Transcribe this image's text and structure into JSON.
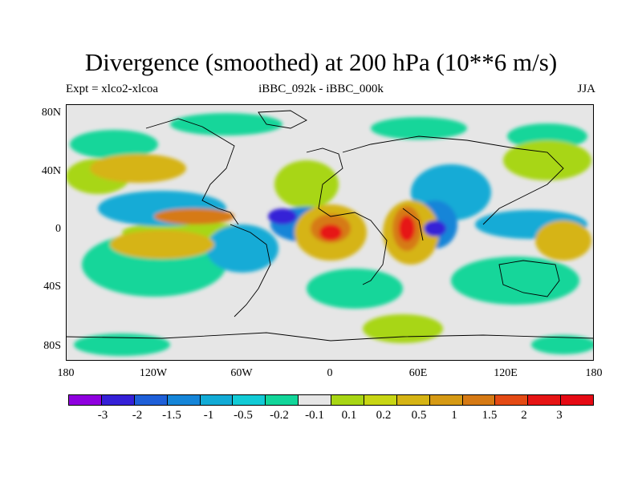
{
  "title": "Divergence (smoothed) at 200 hPa (10**6 m/s)",
  "subtitle_left": "Expt = xlco2-xlcoa",
  "subtitle_center": "iBBC_092k - iBBC_000k",
  "subtitle_right": "JJA",
  "lat_labels": [
    "80N",
    "40N",
    "0",
    "40S",
    "80S"
  ],
  "lon_labels": [
    "180",
    "120W",
    "60W",
    "0",
    "60E",
    "120E",
    "180"
  ],
  "colorbar": {
    "colors": [
      "#8f00df",
      "#3520d7",
      "#1e5fd8",
      "#1585d8",
      "#12abd6",
      "#12cbd6",
      "#12d69a",
      "#e6e6e6",
      "#a8d614",
      "#c8d614",
      "#d6b414",
      "#d69a14",
      "#d67a14",
      "#e44a14",
      "#e61414",
      "#e60a14"
    ],
    "tick_labels": [
      "-3",
      "-2",
      "-1.5",
      "-1",
      "-0.5",
      "-0.2",
      "-0.1",
      "0.1",
      "0.2",
      "0.5",
      "1",
      "1.5",
      "2",
      "3"
    ]
  },
  "field_colors": {
    "background": "#e6e6e6",
    "neg_strong": "#3520d7",
    "neg_mid": "#1585d8",
    "neg_weak": "#12abd6",
    "neg_faint": "#12d69a",
    "pos_faint": "#a8d614",
    "pos_weak": "#d6b414",
    "pos_mid": "#d67a14",
    "pos_strong": "#e61414"
  }
}
